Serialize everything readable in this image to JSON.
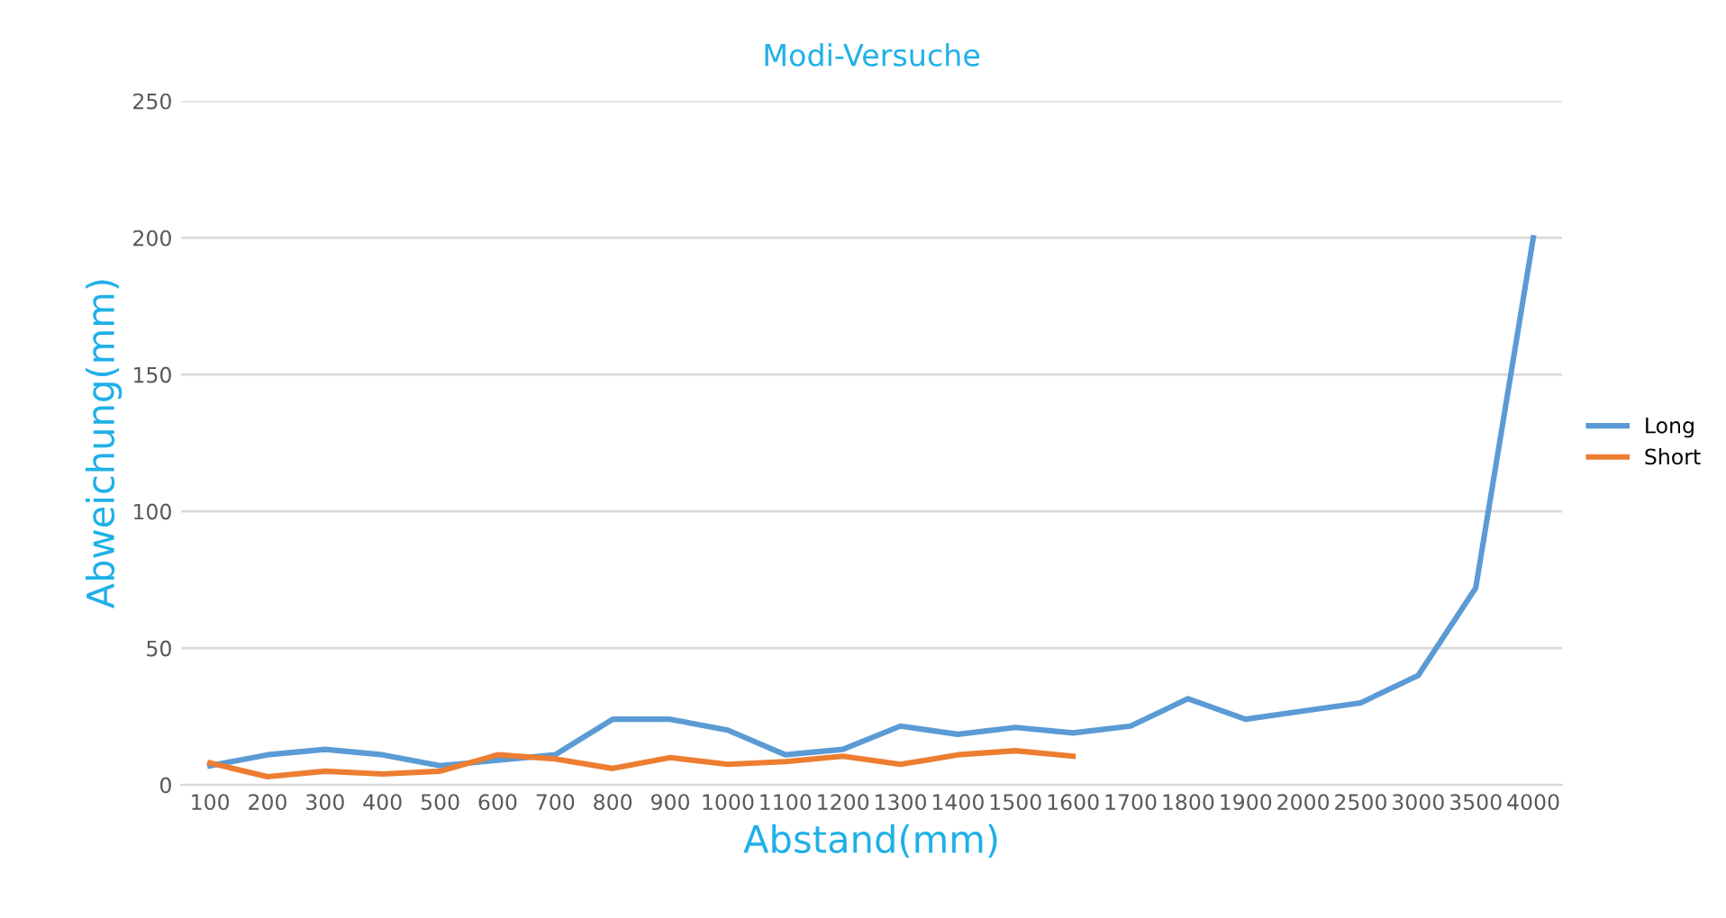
{
  "chart_data": {
    "type": "line",
    "title": "Modi-Versuche",
    "xlabel": "Abstand(mm)",
    "ylabel": "Abweichung(mm)",
    "categories": [
      "100",
      "200",
      "300",
      "400",
      "500",
      "600",
      "700",
      "800",
      "900",
      "1000",
      "1100",
      "1200",
      "1300",
      "1400",
      "1500",
      "1600",
      "1700",
      "1800",
      "1900",
      "2000",
      "2500",
      "3000",
      "3500",
      "4000"
    ],
    "series": [
      {
        "name": "Long",
        "color": "#5b9bd5",
        "values": [
          7,
          11,
          13,
          11,
          7,
          9,
          11,
          24,
          24,
          20,
          11,
          13,
          21.5,
          18.5,
          21,
          19,
          21.5,
          31.5,
          24,
          27,
          30,
          40,
          72,
          200
        ]
      },
      {
        "name": "Short",
        "color": "#ed7d31",
        "values": [
          8,
          3,
          5,
          4,
          5,
          11,
          9.5,
          6,
          10,
          7.5,
          8.5,
          10.5,
          7.5,
          11,
          12.5,
          10.5,
          null,
          null,
          null,
          null,
          null,
          null,
          null,
          null
        ]
      }
    ],
    "ylim": [
      0,
      250
    ],
    "yticks": [
      0,
      50,
      100,
      150,
      200,
      250
    ],
    "grid": "y",
    "legend": "right",
    "marker": "none",
    "line_style": "solid"
  }
}
